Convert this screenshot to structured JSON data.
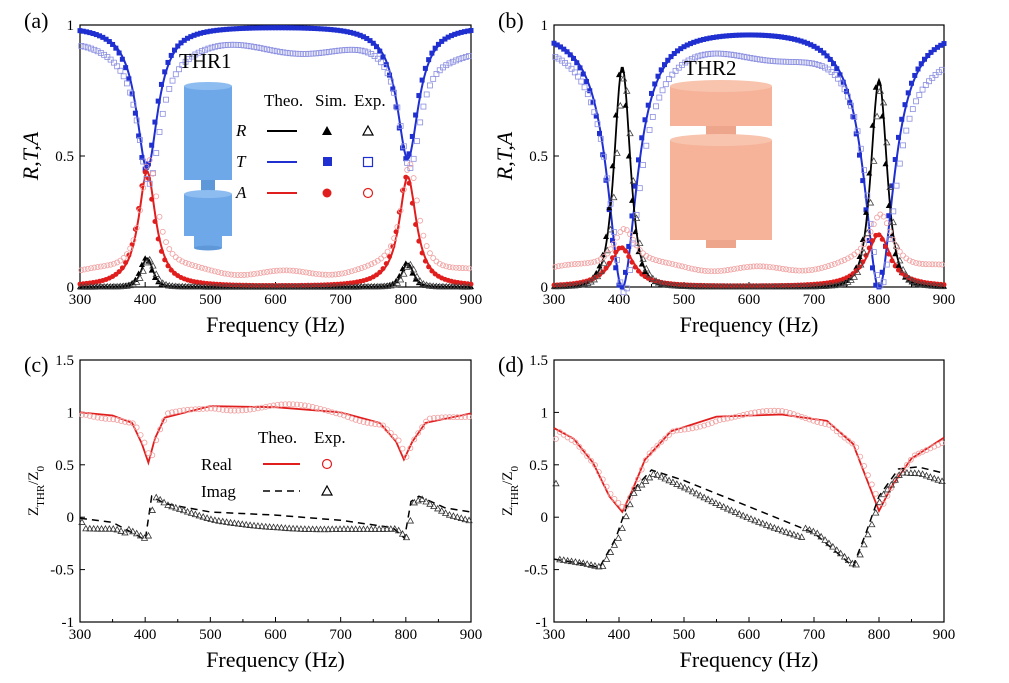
{
  "figure": {
    "panels": [
      {
        "id": "a",
        "label": "(a)",
        "inset_title": "THR1"
      },
      {
        "id": "b",
        "label": "(b)",
        "inset_title": "THR2"
      },
      {
        "id": "c",
        "label": "(c)"
      },
      {
        "id": "d",
        "label": "(d)"
      }
    ],
    "colors": {
      "R": "#000000",
      "T": "#1f2fd0",
      "A": "#e11e1e",
      "T_light": "#8a8ee0",
      "A_light": "#f0a0a0",
      "inset_a": "#6fa8e8",
      "inset_b": "#f6b39a"
    }
  },
  "chart_data": [
    {
      "type": "line",
      "panel": "a",
      "xlabel": "Frequency (Hz)",
      "ylabel": "R,T,A",
      "xlim": [
        300,
        900
      ],
      "ylim": [
        0,
        1
      ],
      "xticks": [
        "300",
        "400",
        "500",
        "600",
        "700",
        "800",
        "900"
      ],
      "yticks": [
        "0",
        "0.5",
        "1"
      ],
      "legend": {
        "headers": [
          "Theo.",
          "Sim.",
          "Exp."
        ],
        "rows": [
          "R",
          "T",
          "A"
        ],
        "placement": "center-right"
      },
      "resonances": [
        {
          "f0": 403,
          "R_peak": 0.11,
          "T_min": 0.45,
          "A_peak": 0.44
        },
        {
          "f0": 803,
          "R_peak": 0.09,
          "T_min": 0.49,
          "A_peak": 0.42
        }
      ],
      "experiment_baseline": {
        "T": 0.92,
        "A": 0.06
      }
    },
    {
      "type": "line",
      "panel": "b",
      "xlabel": "Frequency (Hz)",
      "ylabel": "R,T,A",
      "xlim": [
        300,
        900
      ],
      "ylim": [
        0,
        1
      ],
      "xticks": [
        "300",
        "400",
        "500",
        "600",
        "700",
        "800",
        "900"
      ],
      "yticks": [
        "0",
        "0.5",
        "1"
      ],
      "resonances": [
        {
          "f0": 405,
          "R_peak": 0.84,
          "T_min": 0.0,
          "A_peak": 0.15
        },
        {
          "f0": 800,
          "R_peak": 0.79,
          "T_min": 0.0,
          "A_peak": 0.2
        }
      ],
      "experiment_baseline": {
        "T": 0.92,
        "A": 0.08
      }
    },
    {
      "type": "line",
      "panel": "c",
      "xlabel": "Frequency (Hz)",
      "ylabel": "Z_THR/Z_0",
      "xlim": [
        300,
        900
      ],
      "ylim": [
        -1,
        1.5
      ],
      "xticks": [
        "300",
        "400",
        "500",
        "600",
        "700",
        "800",
        "900"
      ],
      "yticks": [
        "-1",
        "-0.5",
        "0",
        "0.5",
        "1",
        "1.5"
      ],
      "legend": {
        "headers": [
          "Theo.",
          "Exp."
        ],
        "rows": [
          "Real",
          "Imag"
        ],
        "placement": "center"
      },
      "real_theory": [
        [
          300,
          1.0
        ],
        [
          350,
          0.97
        ],
        [
          380,
          0.9
        ],
        [
          395,
          0.7
        ],
        [
          405,
          0.52
        ],
        [
          415,
          0.75
        ],
        [
          430,
          0.95
        ],
        [
          500,
          1.06
        ],
        [
          600,
          1.05
        ],
        [
          700,
          1.0
        ],
        [
          760,
          0.9
        ],
        [
          785,
          0.72
        ],
        [
          797,
          0.55
        ],
        [
          810,
          0.72
        ],
        [
          830,
          0.9
        ],
        [
          900,
          0.99
        ]
      ],
      "imag_theory": [
        [
          300,
          -0.01
        ],
        [
          350,
          -0.05
        ],
        [
          390,
          -0.18
        ],
        [
          400,
          -0.22
        ],
        [
          410,
          0.2
        ],
        [
          430,
          0.13
        ],
        [
          500,
          0.05
        ],
        [
          600,
          0.02
        ],
        [
          700,
          -0.03
        ],
        [
          780,
          -0.1
        ],
        [
          798,
          -0.2
        ],
        [
          808,
          0.15
        ],
        [
          820,
          0.2
        ],
        [
          860,
          0.09
        ],
        [
          900,
          0.05
        ]
      ]
    },
    {
      "type": "line",
      "panel": "d",
      "xlabel": "Frequency (Hz)",
      "ylabel": "Z_THR/Z_0",
      "xlim": [
        300,
        900
      ],
      "ylim": [
        -1,
        1.5
      ],
      "xticks": [
        "300",
        "400",
        "500",
        "600",
        "700",
        "800",
        "900"
      ],
      "yticks": [
        "-1",
        "-0.5",
        "0",
        "0.5",
        "1",
        "1.5"
      ],
      "real_theory": [
        [
          300,
          0.85
        ],
        [
          330,
          0.75
        ],
        [
          360,
          0.52
        ],
        [
          385,
          0.2
        ],
        [
          405,
          0.05
        ],
        [
          420,
          0.25
        ],
        [
          440,
          0.55
        ],
        [
          480,
          0.82
        ],
        [
          550,
          0.96
        ],
        [
          650,
          0.98
        ],
        [
          720,
          0.92
        ],
        [
          760,
          0.7
        ],
        [
          785,
          0.3
        ],
        [
          800,
          0.06
        ],
        [
          820,
          0.3
        ],
        [
          850,
          0.56
        ],
        [
          900,
          0.76
        ]
      ],
      "imag_theory": [
        [
          300,
          -0.4
        ],
        [
          340,
          -0.44
        ],
        [
          370,
          -0.48
        ],
        [
          395,
          -0.2
        ],
        [
          420,
          0.25
        ],
        [
          450,
          0.45
        ],
        [
          500,
          0.35
        ],
        [
          600,
          0.1
        ],
        [
          700,
          -0.15
        ],
        [
          760,
          -0.47
        ],
        [
          780,
          -0.15
        ],
        [
          800,
          0.2
        ],
        [
          830,
          0.46
        ],
        [
          860,
          0.48
        ],
        [
          900,
          0.42
        ]
      ]
    }
  ]
}
